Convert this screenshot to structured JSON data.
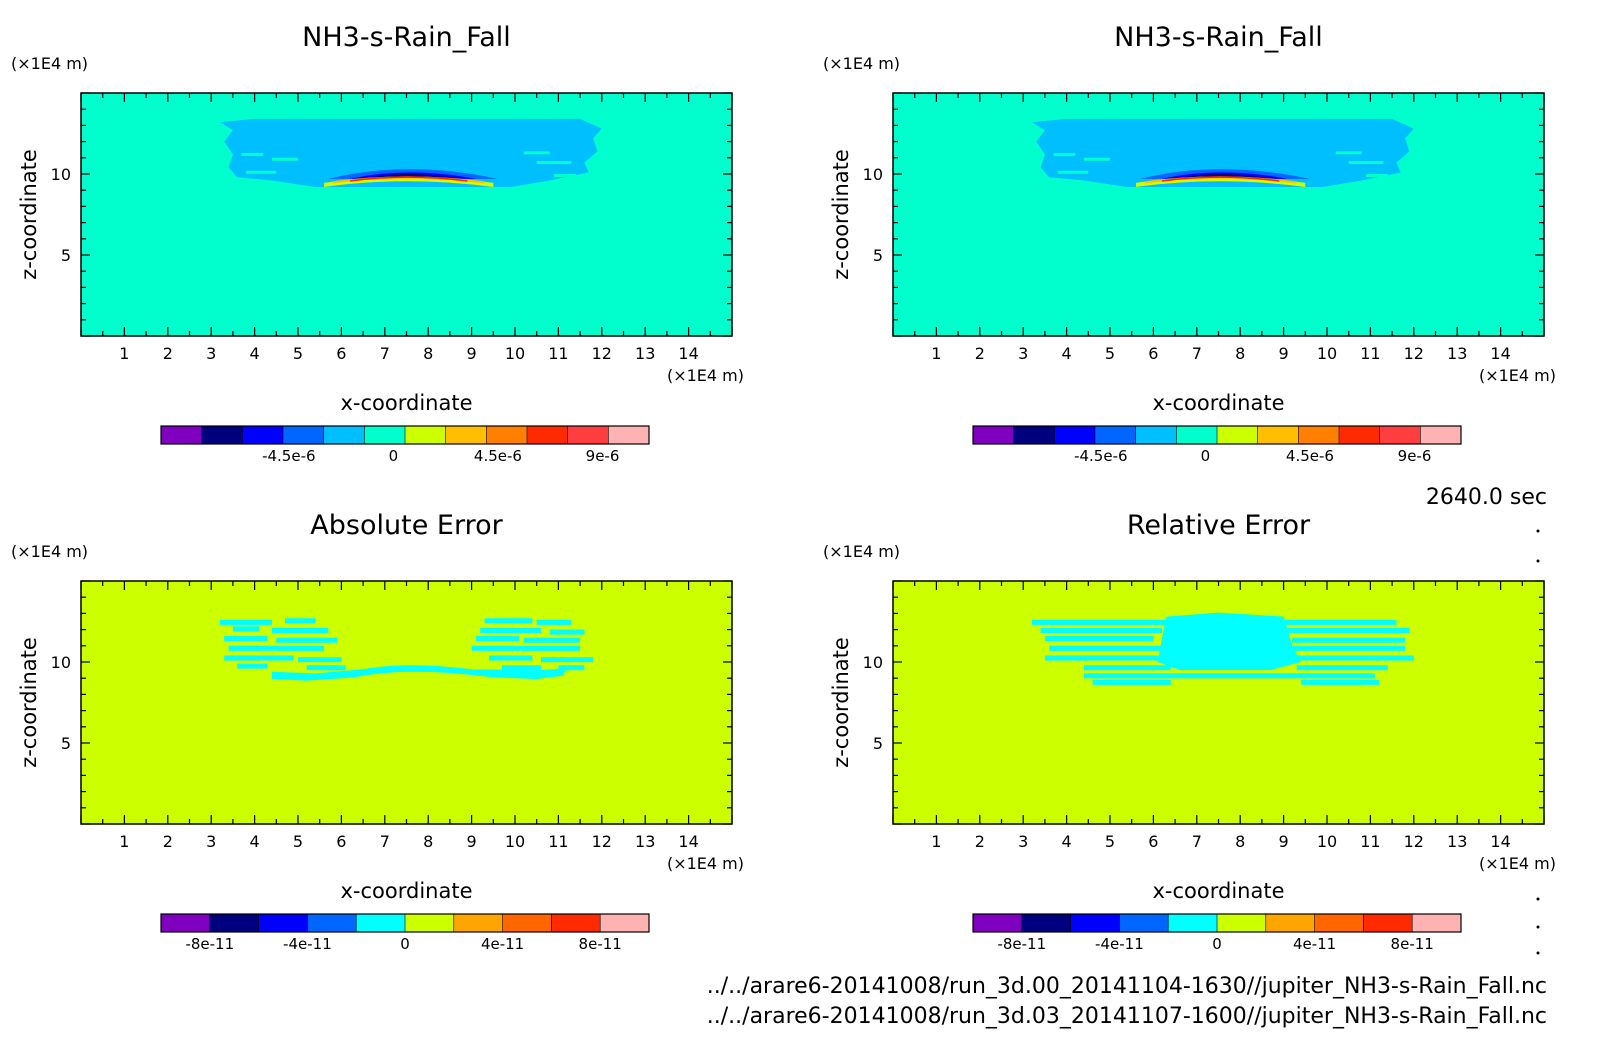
{
  "time_label": "2640.0 sec",
  "footer": {
    "line1": "../../arare6-20141008/run_3d.00_20141104-1630//jupiter_NH3-s-Rain_Fall.nc",
    "line2": "../../arare6-20141008/run_3d.03_20141107-1600//jupiter_NH3-s-Rain_Fall.nc"
  },
  "colors": {
    "field_bg": "#00ffcc",
    "error_bg": "#ccff00"
  },
  "chart_data": [
    {
      "type": "heatmap",
      "title": "NH3-s-Rain_Fall",
      "xlabel": "x-coordinate",
      "ylabel": "z-coordinate",
      "x_unit": "(×1E4 m)",
      "y_unit": "(×1E4 m)",
      "xlim": [
        0,
        15
      ],
      "ylim": [
        0,
        15
      ],
      "xticks": [
        1,
        2,
        3,
        4,
        5,
        6,
        7,
        8,
        9,
        10,
        11,
        12,
        13,
        14
      ],
      "yticks": [
        5,
        10
      ],
      "field": "rain",
      "colorbar": {
        "colors": [
          "#7f00bf",
          "#00007f",
          "#0000ff",
          "#0066ff",
          "#00bfff",
          "#00ffcc",
          "#ccff00",
          "#ffbf00",
          "#ff7f00",
          "#ff2a00",
          "#ff3f3f",
          "#ffb2b2"
        ],
        "ticks": [
          {
            "label": "-4.5e-6",
            "value": -4.5e-06
          },
          {
            "label": "0",
            "value": 0
          },
          {
            "label": "4.5e-6",
            "value": 4.5e-06
          },
          {
            "label": "9e-6",
            "value": 9e-06
          }
        ],
        "range": [
          -1e-05,
          1.1e-05
        ]
      }
    },
    {
      "type": "heatmap",
      "title": "NH3-s-Rain_Fall",
      "xlabel": "x-coordinate",
      "ylabel": "z-coordinate",
      "x_unit": "(×1E4 m)",
      "y_unit": "(×1E4 m)",
      "xlim": [
        0,
        15
      ],
      "ylim": [
        0,
        15
      ],
      "xticks": [
        1,
        2,
        3,
        4,
        5,
        6,
        7,
        8,
        9,
        10,
        11,
        12,
        13,
        14
      ],
      "yticks": [
        5,
        10
      ],
      "field": "rain",
      "colorbar": {
        "colors": [
          "#7f00bf",
          "#00007f",
          "#0000ff",
          "#0066ff",
          "#00bfff",
          "#00ffcc",
          "#ccff00",
          "#ffbf00",
          "#ff7f00",
          "#ff2a00",
          "#ff3f3f",
          "#ffb2b2"
        ],
        "ticks": [
          {
            "label": "-4.5e-6",
            "value": -4.5e-06
          },
          {
            "label": "0",
            "value": 0
          },
          {
            "label": "4.5e-6",
            "value": 4.5e-06
          },
          {
            "label": "9e-6",
            "value": 9e-06
          }
        ],
        "range": [
          -1e-05,
          1.1e-05
        ]
      }
    },
    {
      "type": "heatmap",
      "title": "Absolute Error",
      "xlabel": "x-coordinate",
      "ylabel": "z-coordinate",
      "x_unit": "(×1E4 m)",
      "y_unit": "(×1E4 m)",
      "xlim": [
        0,
        15
      ],
      "ylim": [
        0,
        15
      ],
      "xticks": [
        1,
        2,
        3,
        4,
        5,
        6,
        7,
        8,
        9,
        10,
        11,
        12,
        13,
        14
      ],
      "yticks": [
        5,
        10
      ],
      "field": "abs",
      "colorbar": {
        "colors": [
          "#7f00bf",
          "#00007f",
          "#0000ff",
          "#0066ff",
          "#00ffff",
          "#ccff00",
          "#ffa500",
          "#ff6600",
          "#ff2a00",
          "#ffb2b2"
        ],
        "ticks": [
          {
            "label": "-8e-11",
            "value": -8e-11
          },
          {
            "label": "-4e-11",
            "value": -4e-11
          },
          {
            "label": "0",
            "value": 0
          },
          {
            "label": "4e-11",
            "value": 4e-11
          },
          {
            "label": "8e-11",
            "value": 8e-11
          }
        ],
        "range": [
          -1e-10,
          1e-10
        ]
      }
    },
    {
      "type": "heatmap",
      "title": "Relative Error",
      "xlabel": "x-coordinate",
      "ylabel": "z-coordinate",
      "x_unit": "(×1E4 m)",
      "y_unit": "(×1E4 m)",
      "xlim": [
        0,
        15
      ],
      "ylim": [
        0,
        15
      ],
      "xticks": [
        1,
        2,
        3,
        4,
        5,
        6,
        7,
        8,
        9,
        10,
        11,
        12,
        13,
        14
      ],
      "yticks": [
        5,
        10
      ],
      "field": "rel",
      "colorbar": {
        "colors": [
          "#7f00bf",
          "#00007f",
          "#0000ff",
          "#0066ff",
          "#00ffff",
          "#ccff00",
          "#ffa500",
          "#ff6600",
          "#ff2a00",
          "#ffb2b2"
        ],
        "ticks": [
          {
            "label": "-8e-11",
            "value": -8e-11
          },
          {
            "label": "-4e-11",
            "value": -4e-11
          },
          {
            "label": "0",
            "value": 0
          },
          {
            "label": "4e-11",
            "value": 4e-11
          },
          {
            "label": "8e-11",
            "value": 8e-11
          }
        ],
        "range": [
          -1e-10,
          1e-10
        ]
      }
    }
  ]
}
